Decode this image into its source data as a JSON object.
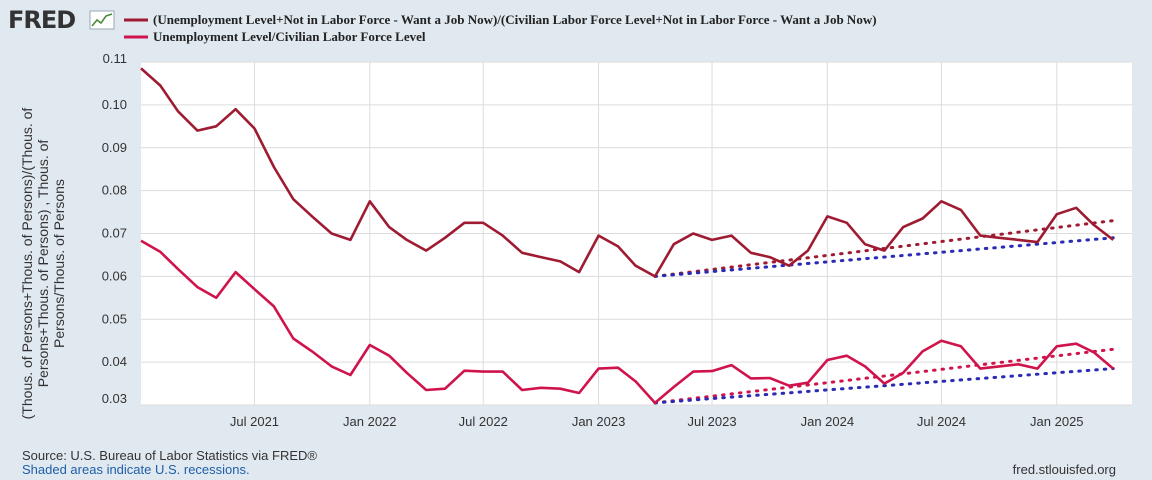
{
  "logo": {
    "text": "FRED",
    "icon": "fred-chart-icon"
  },
  "footer": {
    "source": "Source: U.S. Bureau of Labor Statistics via FRED®",
    "shaded": "Shaded areas indicate U.S. recessions.",
    "url": "fred.stlouisfed.org"
  },
  "chart_data": {
    "type": "line",
    "title": "",
    "ylabel_lines": [
      "(Thous. of Persons+Thous. of Persons)/(Thous. of",
      "Persons+Thous. of Persons) , Thous. of",
      "Persons/Thous. of Persons"
    ],
    "ylim": [
      0.03,
      0.11
    ],
    "yticks": [
      0.03,
      0.04,
      0.05,
      0.06,
      0.07,
      0.08,
      0.09,
      0.1,
      0.11
    ],
    "ytick_labels": [
      "0.03",
      "0.04",
      "0.05",
      "0.06",
      "0.07",
      "0.08",
      "0.09",
      "0.10",
      "0.11"
    ],
    "xlim": [
      "2021-01-01",
      "2025-05-01"
    ],
    "xticks": [
      "2021-07-01",
      "2022-01-01",
      "2022-07-01",
      "2023-01-01",
      "2023-07-01",
      "2024-01-01",
      "2024-07-01",
      "2025-01-01"
    ],
    "xtick_labels": [
      "Jul 2021",
      "Jan 2022",
      "Jul 2022",
      "Jan 2023",
      "Jul 2023",
      "Jan 2024",
      "Jul 2024",
      "Jan 2025"
    ],
    "grid": true,
    "legend_position": "top-left",
    "x": [
      "2021-01-01",
      "2021-02-01",
      "2021-03-01",
      "2021-04-01",
      "2021-05-01",
      "2021-06-01",
      "2021-07-01",
      "2021-08-01",
      "2021-09-01",
      "2021-10-01",
      "2021-11-01",
      "2021-12-01",
      "2022-01-01",
      "2022-02-01",
      "2022-03-01",
      "2022-04-01",
      "2022-05-01",
      "2022-06-01",
      "2022-07-01",
      "2022-08-01",
      "2022-09-01",
      "2022-10-01",
      "2022-11-01",
      "2022-12-01",
      "2023-01-01",
      "2023-02-01",
      "2023-03-01",
      "2023-04-01",
      "2023-05-01",
      "2023-06-01",
      "2023-07-01",
      "2023-08-01",
      "2023-09-01",
      "2023-10-01",
      "2023-11-01",
      "2023-12-01",
      "2024-01-01",
      "2024-02-01",
      "2024-03-01",
      "2024-04-01",
      "2024-05-01",
      "2024-06-01",
      "2024-07-01",
      "2024-08-01",
      "2024-09-01",
      "2024-10-01",
      "2024-11-01",
      "2024-12-01",
      "2025-01-01",
      "2025-02-01",
      "2025-03-01",
      "2025-04-01",
      "2025-05-01"
    ],
    "series": [
      {
        "name": "(Unemployment Level+Not in Labor Force - Want a Job Now)/(Civilian Labor Force Level+Not in Labor Force - Want a Job Now)",
        "color": "#9e1b32",
        "values": [
          0.1085,
          0.1045,
          0.0985,
          0.094,
          0.095,
          0.099,
          0.0945,
          0.0855,
          0.078,
          0.074,
          0.07,
          0.0685,
          0.0775,
          0.0715,
          0.0685,
          0.066,
          0.069,
          0.0725,
          0.0725,
          0.0695,
          0.0655,
          0.0645,
          0.0635,
          0.061,
          0.0695,
          0.067,
          0.0625,
          0.06,
          0.0675,
          0.07,
          0.0685,
          0.0695,
          0.0655,
          0.0645,
          0.0625,
          0.066,
          0.074,
          0.0725,
          0.0675,
          0.066,
          0.0715,
          0.0735,
          0.0775,
          0.0755,
          0.0695,
          0.069,
          0.0685,
          0.068,
          0.0745,
          0.076,
          0.072,
          0.0685,
          null
        ]
      },
      {
        "name": "Unemployment Level/Civilian Labor Force Level",
        "color": "#d0134b",
        "values": [
          0.0683,
          0.0657,
          0.0617,
          0.0575,
          0.055,
          0.061,
          0.057,
          0.053,
          0.0455,
          0.0425,
          0.039,
          0.037,
          0.044,
          0.0415,
          0.0375,
          0.0335,
          0.0338,
          0.038,
          0.0378,
          0.0378,
          0.0335,
          0.034,
          0.0338,
          0.0328,
          0.0385,
          0.0387,
          0.0355,
          0.0305,
          0.0342,
          0.0378,
          0.0379,
          0.0393,
          0.0362,
          0.0363,
          0.0345,
          0.0352,
          0.0405,
          0.0415,
          0.039,
          0.035,
          0.0375,
          0.0425,
          0.045,
          0.0437,
          0.0385,
          0.039,
          0.0395,
          0.0385,
          0.0437,
          0.0443,
          0.0423,
          0.0385,
          null
        ]
      }
    ],
    "trendlines": [
      {
        "color": "#9e1b32",
        "from": {
          "x": "2023-04-01",
          "y": 0.06
        },
        "to": {
          "x": "2025-04-01",
          "y": 0.073
        }
      },
      {
        "color": "#2a2ab5",
        "from": {
          "x": "2023-04-01",
          "y": 0.06
        },
        "to": {
          "x": "2025-04-01",
          "y": 0.069
        }
      },
      {
        "color": "#d0134b",
        "from": {
          "x": "2023-04-01",
          "y": 0.0305
        },
        "to": {
          "x": "2025-04-01",
          "y": 0.043
        }
      },
      {
        "color": "#2a2ab5",
        "from": {
          "x": "2023-04-01",
          "y": 0.0305
        },
        "to": {
          "x": "2025-04-01",
          "y": 0.0385
        }
      }
    ]
  }
}
